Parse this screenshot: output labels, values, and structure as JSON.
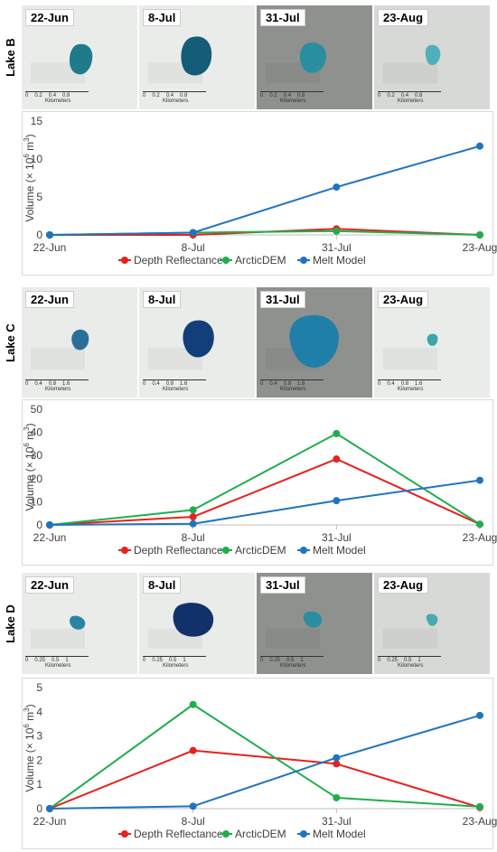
{
  "colors": {
    "depth": "#e8201e",
    "arctic": "#1fae4b",
    "melt": "#1f74bf",
    "grid": "#d9d9d9",
    "axis": "#bfbfbf"
  },
  "legend": [
    "Depth Reflectance",
    "ArcticDEM",
    "Melt Model"
  ],
  "ylabel_main": "Volume (× 10",
  "ylabel_exp": "6",
  "ylabel_tail": " m",
  "ylabel_exp2": "3",
  "ylabel_close": ")",
  "km_label": "Kilometers",
  "lakes": [
    {
      "label": "Lake B",
      "tiles": [
        {
          "date": "22-Jun",
          "bg": "light",
          "scale": [
            "0",
            "0.2",
            "0.4",
            "0.8"
          ]
        },
        {
          "date": "8-Jul",
          "bg": "light",
          "scale": [
            "0",
            "0.2",
            "0.4",
            "0.8"
          ]
        },
        {
          "date": "31-Jul",
          "bg": "dark",
          "scale": [
            "0",
            "0.2",
            "0.4",
            "0.8"
          ]
        },
        {
          "date": "23-Aug",
          "bg": "mid",
          "scale": [
            "0",
            "0.2",
            "0.4",
            "0.8"
          ]
        }
      ]
    },
    {
      "label": "Lake C",
      "tiles": [
        {
          "date": "22-Jun",
          "bg": "light",
          "scale": [
            "0",
            "0.4",
            "0.8",
            "1.6"
          ]
        },
        {
          "date": "8-Jul",
          "bg": "light",
          "scale": [
            "0",
            "0.4",
            "0.8",
            "1.6"
          ]
        },
        {
          "date": "31-Jul",
          "bg": "dark",
          "scale": [
            "0",
            "0.4",
            "0.8",
            "1.6"
          ]
        },
        {
          "date": "23-Aug",
          "bg": "light",
          "scale": [
            "0",
            "0.4",
            "0.8",
            "1.6"
          ]
        }
      ]
    },
    {
      "label": "Lake D",
      "tiles": [
        {
          "date": "22-Jun",
          "bg": "light",
          "scale": [
            "0",
            "0.25",
            "0.5",
            "1"
          ]
        },
        {
          "date": "8-Jul",
          "bg": "light",
          "scale": [
            "0",
            "0.25",
            "0.5",
            "1"
          ]
        },
        {
          "date": "31-Jul",
          "bg": "dark",
          "scale": [
            "0",
            "0.25",
            "0.5",
            "1"
          ]
        },
        {
          "date": "23-Aug",
          "bg": "mid",
          "scale": [
            "0",
            "0.25",
            "0.5",
            "1"
          ]
        }
      ]
    }
  ],
  "chart_data": [
    {
      "type": "line",
      "categories": [
        "22-Jun",
        "8-Jul",
        "31-Jul",
        "23-Aug"
      ],
      "ylim": [
        0,
        15
      ],
      "yticks": [
        0,
        5,
        10,
        15
      ],
      "grid": false,
      "legend_position": "bottom",
      "series": [
        {
          "name": "Depth Reflectance",
          "values": [
            0,
            0,
            0.8,
            0
          ]
        },
        {
          "name": "ArcticDEM",
          "values": [
            0,
            0.3,
            0.5,
            0
          ]
        },
        {
          "name": "Melt Model",
          "values": [
            0,
            0.3,
            6.3,
            11.7
          ]
        }
      ]
    },
    {
      "type": "line",
      "categories": [
        "22-Jun",
        "8-Jul",
        "31-Jul",
        "23-Aug"
      ],
      "ylim": [
        0,
        50
      ],
      "yticks": [
        0,
        10,
        20,
        30,
        40,
        50
      ],
      "grid": false,
      "legend_position": "bottom",
      "series": [
        {
          "name": "Depth Reflectance",
          "values": [
            0,
            3.5,
            28.5,
            0.3
          ]
        },
        {
          "name": "ArcticDEM",
          "values": [
            0,
            6.5,
            39.5,
            0.3
          ]
        },
        {
          "name": "Melt Model",
          "values": [
            0,
            0.5,
            10.5,
            19.3
          ]
        }
      ]
    },
    {
      "type": "line",
      "categories": [
        "22-Jun",
        "8-Jul",
        "31-Jul",
        "23-Aug"
      ],
      "ylim": [
        0,
        5
      ],
      "yticks": [
        0,
        1,
        2,
        3,
        4,
        5
      ],
      "grid": false,
      "legend_position": "bottom",
      "series": [
        {
          "name": "Depth Reflectance",
          "values": [
            0,
            2.4,
            1.85,
            0.05
          ]
        },
        {
          "name": "ArcticDEM",
          "values": [
            0,
            4.3,
            0.45,
            0.08
          ]
        },
        {
          "name": "Melt Model",
          "values": [
            0,
            0.1,
            2.1,
            3.85
          ]
        }
      ]
    }
  ]
}
